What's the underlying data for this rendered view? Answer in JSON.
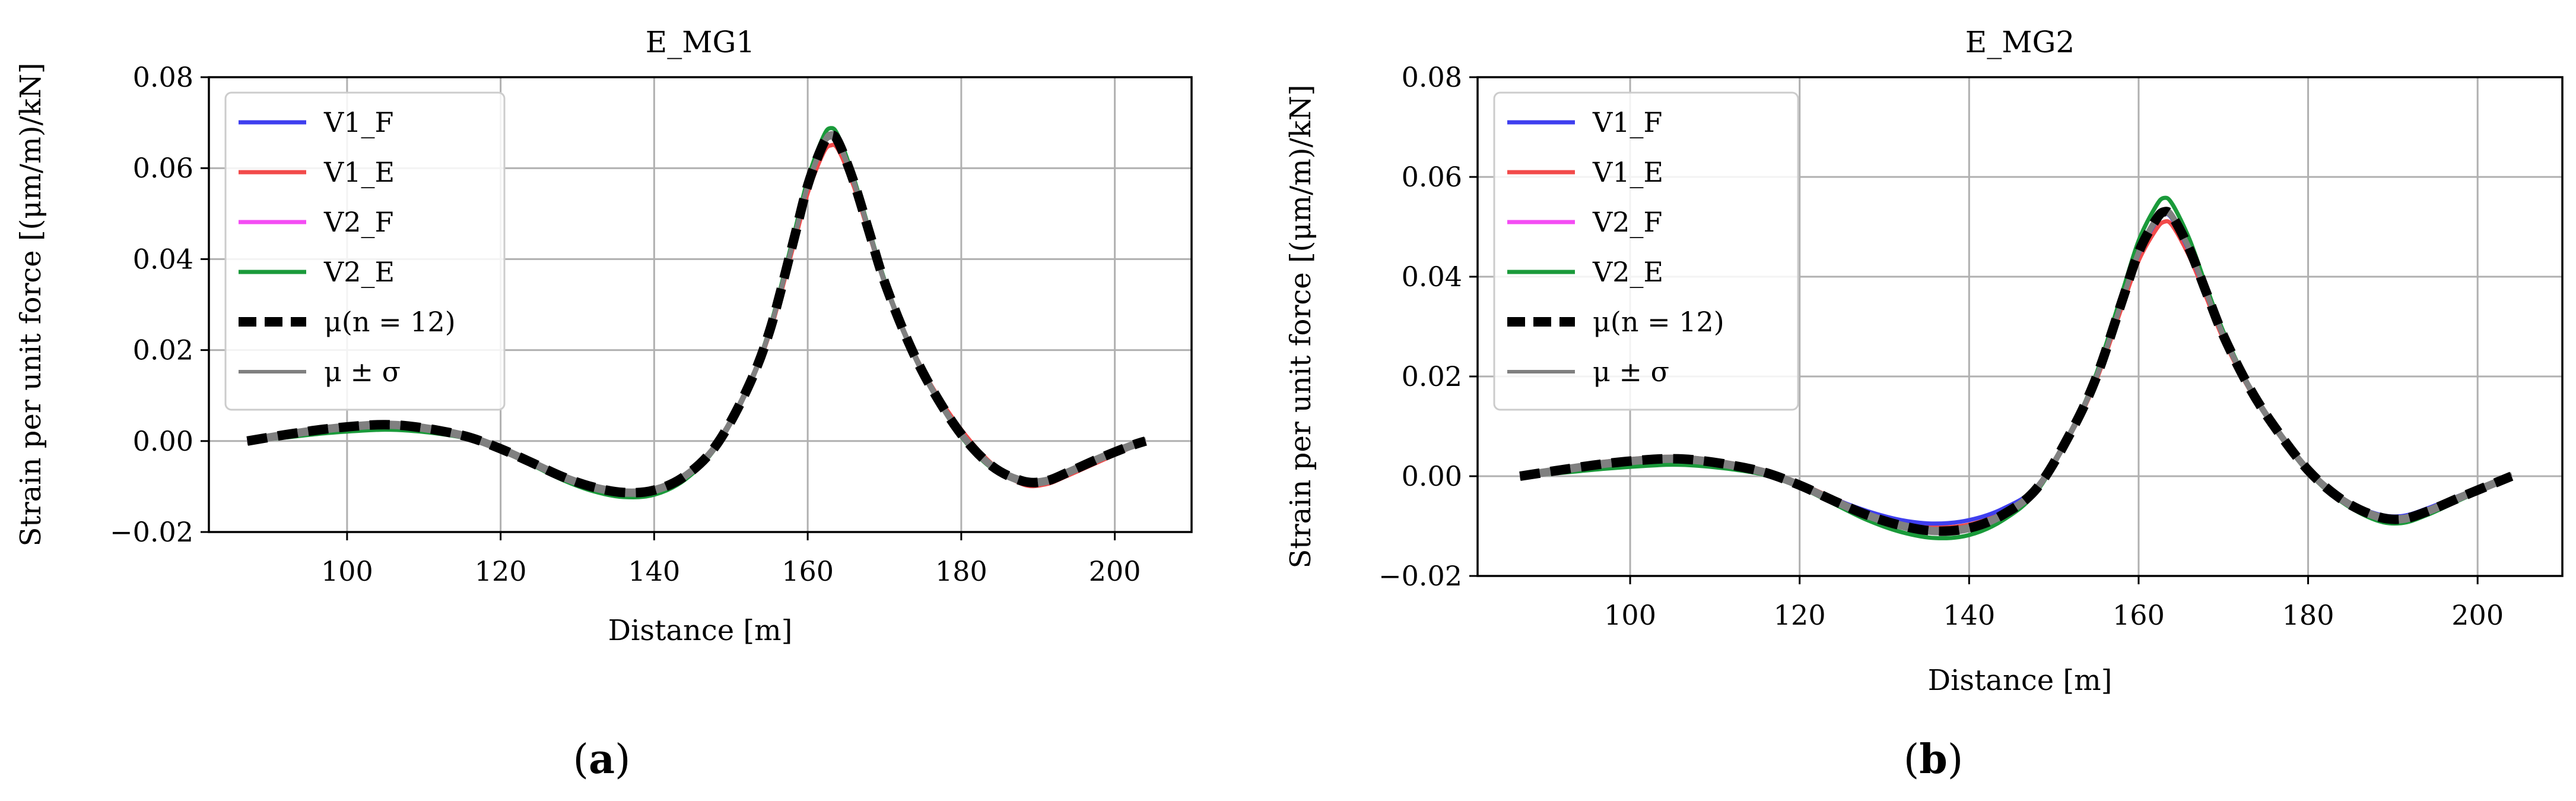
{
  "colors": {
    "V1_F": "#3f3fef",
    "V1_E": "#f24a4a",
    "V2_F": "#f44cf4",
    "V2_E": "#1a9a3a",
    "mu": "#000000",
    "sigma": "#808080",
    "grid": "#b0b0b0"
  },
  "chart_data": [
    {
      "type": "line",
      "title": "E_MG1",
      "xlabel": "Distance [m]",
      "ylabel": "Strain per unit force [(μm/m)/kN]",
      "xlim": [
        82,
        210
      ],
      "ylim": [
        -0.02,
        0.08
      ],
      "xticks": [
        100,
        120,
        140,
        160,
        180,
        200
      ],
      "yticks": [
        -0.02,
        0.0,
        0.02,
        0.04,
        0.06,
        0.08
      ],
      "xtick_labels": [
        "100",
        "120",
        "140",
        "160",
        "180",
        "200"
      ],
      "ytick_labels": [
        "−0.02",
        "0.00",
        "0.02",
        "0.04",
        "0.06",
        "0.08"
      ],
      "legend_position": "top-left",
      "x": [
        87,
        92,
        97,
        102,
        105,
        108,
        112,
        116,
        120,
        124,
        128,
        132,
        136,
        140,
        144,
        148,
        152,
        155,
        158,
        160,
        162,
        163,
        164,
        166,
        168,
        170,
        173,
        176,
        180,
        184,
        188,
        191,
        194,
        198,
        202,
        204
      ],
      "series": [
        {
          "name": "V1_F",
          "values": [
            0.0,
            0.0015,
            0.0028,
            0.0036,
            0.0038,
            0.0035,
            0.0025,
            0.001,
            -0.0015,
            -0.0045,
            -0.0075,
            -0.0098,
            -0.011,
            -0.0105,
            -0.0075,
            -0.001,
            0.011,
            0.024,
            0.043,
            0.056,
            0.065,
            0.067,
            0.0655,
            0.057,
            0.046,
            0.035,
            0.022,
            0.012,
            0.0015,
            -0.0055,
            -0.0085,
            -0.0085,
            -0.0065,
            -0.0035,
            -0.001,
            0.0
          ]
        },
        {
          "name": "V1_E",
          "values": [
            0.0,
            0.0016,
            0.0029,
            0.0037,
            0.0039,
            0.0036,
            0.0026,
            0.0011,
            -0.0014,
            -0.0044,
            -0.0074,
            -0.0097,
            -0.0109,
            -0.0104,
            -0.0074,
            -0.0009,
            0.0108,
            0.0235,
            0.042,
            0.0545,
            0.0632,
            0.065,
            0.064,
            0.056,
            0.0455,
            0.035,
            0.0225,
            0.0125,
            0.0025,
            -0.005,
            -0.0095,
            -0.0095,
            -0.0075,
            -0.0045,
            -0.0015,
            0.0
          ]
        },
        {
          "name": "V2_F",
          "values": [
            0.0,
            0.0014,
            0.0027,
            0.0035,
            0.0037,
            0.0034,
            0.0024,
            0.0009,
            -0.0016,
            -0.0046,
            -0.0076,
            -0.0099,
            -0.0111,
            -0.0106,
            -0.0076,
            -0.0011,
            0.0111,
            0.0242,
            0.0432,
            0.0562,
            0.0652,
            0.0672,
            0.0657,
            0.0572,
            0.0462,
            0.0352,
            0.0222,
            0.012,
            0.0015,
            -0.0055,
            -0.0087,
            -0.0087,
            -0.0067,
            -0.0037,
            -0.0011,
            0.0
          ]
        },
        {
          "name": "V2_E",
          "values": [
            0.0,
            0.0008,
            0.0017,
            0.0023,
            0.0025,
            0.0023,
            0.0016,
            0.0004,
            -0.0021,
            -0.0052,
            -0.0085,
            -0.011,
            -0.0123,
            -0.0118,
            -0.0085,
            -0.0015,
            0.011,
            0.0245,
            0.044,
            0.0575,
            0.0668,
            0.0688,
            0.067,
            0.0578,
            0.0465,
            0.0355,
            0.0222,
            0.0118,
            0.001,
            -0.006,
            -0.0088,
            -0.009,
            -0.0072,
            -0.0042,
            -0.0014,
            0.0
          ]
        },
        {
          "name": "μ(n = 12)",
          "values": [
            0.0,
            0.0014,
            0.0026,
            0.0034,
            0.0036,
            0.0033,
            0.0023,
            0.0008,
            -0.0017,
            -0.0047,
            -0.0078,
            -0.0101,
            -0.0113,
            -0.0108,
            -0.0077,
            -0.0011,
            0.011,
            0.024,
            0.043,
            0.0562,
            0.0652,
            0.0672,
            0.0657,
            0.057,
            0.046,
            0.035,
            0.0222,
            0.012,
            0.0015,
            -0.0055,
            -0.0088,
            -0.0088,
            -0.0068,
            -0.0038,
            -0.0011,
            0.0
          ]
        },
        {
          "name": "μ ± σ",
          "values": [
            0.0,
            0.0014,
            0.0026,
            0.0034,
            0.0036,
            0.0033,
            0.0023,
            0.0008,
            -0.0017,
            -0.0047,
            -0.0078,
            -0.0101,
            -0.0113,
            -0.0108,
            -0.0077,
            -0.0011,
            0.011,
            0.024,
            0.043,
            0.0562,
            0.0652,
            0.0672,
            0.0657,
            0.057,
            0.046,
            0.035,
            0.0222,
            0.012,
            0.0015,
            -0.0055,
            -0.0088,
            -0.0088,
            -0.0068,
            -0.0038,
            -0.0011,
            0.0
          ]
        }
      ]
    },
    {
      "type": "line",
      "title": "E_MG2",
      "xlabel": "Distance [m]",
      "ylabel": "Strain per unit force [(μm/m)/kN]",
      "xlim": [
        82,
        210
      ],
      "ylim": [
        -0.02,
        0.08
      ],
      "xticks": [
        100,
        120,
        140,
        160,
        180,
        200
      ],
      "yticks": [
        -0.02,
        0.0,
        0.02,
        0.04,
        0.06,
        0.08
      ],
      "xtick_labels": [
        "100",
        "120",
        "140",
        "160",
        "180",
        "200"
      ],
      "ytick_labels": [
        "−0.02",
        "0.00",
        "0.02",
        "0.04",
        "0.06",
        "0.08"
      ],
      "legend_position": "top-left",
      "x": [
        87,
        92,
        97,
        102,
        105,
        108,
        112,
        116,
        120,
        124,
        128,
        132,
        136,
        140,
        144,
        148,
        152,
        155,
        158,
        160,
        162,
        163,
        164,
        166,
        168,
        170,
        173,
        176,
        180,
        184,
        188,
        191,
        194,
        198,
        202,
        204
      ],
      "series": [
        {
          "name": "V1_F",
          "values": [
            0.0,
            0.0015,
            0.0028,
            0.0036,
            0.0038,
            0.0035,
            0.0025,
            0.001,
            -0.0015,
            -0.0045,
            -0.007,
            -0.0088,
            -0.0095,
            -0.0088,
            -0.0065,
            -0.002,
            0.009,
            0.02,
            0.035,
            0.0445,
            0.0508,
            0.0525,
            0.0515,
            0.045,
            0.0365,
            0.028,
            0.018,
            0.01,
            0.0015,
            -0.0045,
            -0.0075,
            -0.008,
            -0.0065,
            -0.0038,
            -0.0012,
            0.0
          ]
        },
        {
          "name": "V1_E",
          "values": [
            0.0,
            0.0016,
            0.0029,
            0.0037,
            0.0039,
            0.0036,
            0.0026,
            0.0011,
            -0.0014,
            -0.0044,
            -0.0072,
            -0.0092,
            -0.0102,
            -0.0097,
            -0.0072,
            -0.0022,
            0.0085,
            0.0192,
            0.0338,
            0.0432,
            0.0493,
            0.051,
            0.0502,
            0.044,
            0.0358,
            0.0275,
            0.0176,
            0.0098,
            0.0012,
            -0.0045,
            -0.0078,
            -0.0083,
            -0.0068,
            -0.004,
            -0.0013,
            0.0
          ]
        },
        {
          "name": "V2_F",
          "values": [
            0.0,
            0.0014,
            0.0027,
            0.0035,
            0.0037,
            0.0034,
            0.0024,
            0.0009,
            -0.0016,
            -0.0046,
            -0.0075,
            -0.0096,
            -0.0106,
            -0.0101,
            -0.0075,
            -0.0023,
            0.0088,
            0.0198,
            0.0348,
            0.0445,
            0.0508,
            0.0525,
            0.0516,
            0.0452,
            0.0366,
            0.0281,
            0.018,
            0.01,
            0.0014,
            -0.0046,
            -0.0079,
            -0.0084,
            -0.0069,
            -0.0041,
            -0.0013,
            0.0
          ]
        },
        {
          "name": "V2_E",
          "values": [
            0.0,
            0.0007,
            0.0015,
            0.0021,
            0.0023,
            0.0021,
            0.0014,
            0.0002,
            -0.0022,
            -0.0055,
            -0.0088,
            -0.0112,
            -0.0124,
            -0.0118,
            -0.0088,
            -0.003,
            0.0088,
            0.0205,
            0.0365,
            0.0472,
            0.054,
            0.0558,
            0.0545,
            0.0475,
            0.038,
            0.029,
            0.0182,
            0.0098,
            0.0008,
            -0.0052,
            -0.0088,
            -0.0094,
            -0.0078,
            -0.0047,
            -0.0016,
            0.0
          ]
        },
        {
          "name": "μ(n = 12)",
          "values": [
            0.0,
            0.0013,
            0.0025,
            0.0033,
            0.0035,
            0.0032,
            0.0022,
            0.0007,
            -0.0018,
            -0.0049,
            -0.0078,
            -0.0099,
            -0.011,
            -0.0104,
            -0.0077,
            -0.0024,
            0.0088,
            0.0198,
            0.0349,
            0.0449,
            0.0513,
            0.053,
            0.052,
            0.0455,
            0.0368,
            0.0282,
            0.018,
            0.01,
            0.0012,
            -0.0047,
            -0.008,
            -0.0086,
            -0.0071,
            -0.0042,
            -0.0014,
            0.0
          ]
        },
        {
          "name": "μ ± σ",
          "values": [
            0.0,
            0.0013,
            0.0025,
            0.0033,
            0.0035,
            0.0032,
            0.0022,
            0.0007,
            -0.0018,
            -0.0049,
            -0.0078,
            -0.0099,
            -0.011,
            -0.0104,
            -0.0077,
            -0.0024,
            0.0088,
            0.0198,
            0.0349,
            0.0449,
            0.0513,
            0.053,
            0.052,
            0.0455,
            0.0368,
            0.0282,
            0.018,
            0.01,
            0.0012,
            -0.0047,
            -0.008,
            -0.0086,
            -0.0071,
            -0.0042,
            -0.0014,
            0.0
          ]
        }
      ]
    }
  ],
  "panel_labels": [
    "(a)",
    "(b)"
  ]
}
